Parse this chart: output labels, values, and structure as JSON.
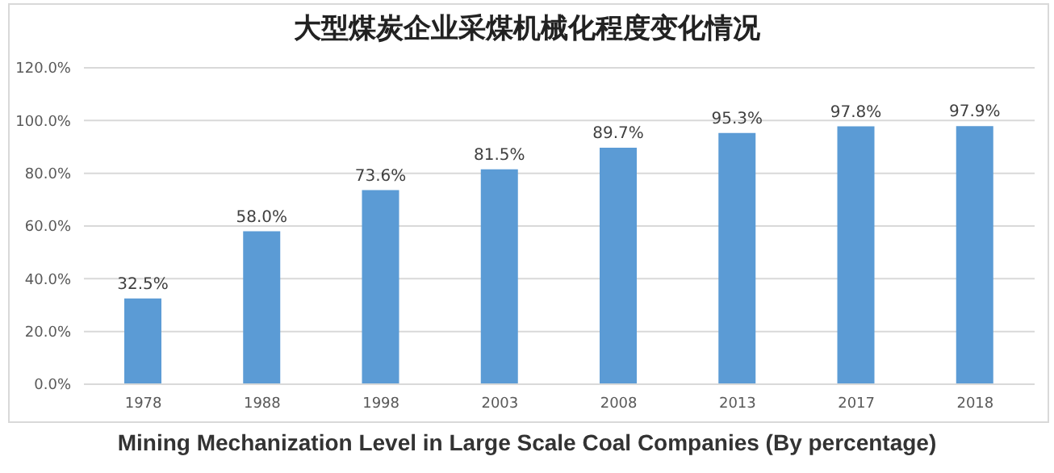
{
  "chart_data": {
    "type": "bar",
    "title": "大型煤炭企业采煤机械化程度变化情况",
    "categories": [
      "1978",
      "1988",
      "1998",
      "2003",
      "2008",
      "2013",
      "2017",
      "2018"
    ],
    "values": [
      32.5,
      58.0,
      73.6,
      81.5,
      89.7,
      95.3,
      97.8,
      97.9
    ],
    "value_labels": [
      "32.5%",
      "58.0%",
      "73.6%",
      "81.5%",
      "89.7%",
      "95.3%",
      "97.8%",
      "97.9%"
    ],
    "color": "#5b9bd5",
    "ylim": [
      0,
      120
    ],
    "yticks": [
      {
        "value": 0,
        "label": "0.0%"
      },
      {
        "value": 20,
        "label": "20.0%"
      },
      {
        "value": 40,
        "label": "40.0%"
      },
      {
        "value": 60,
        "label": "60.0%"
      },
      {
        "value": 80,
        "label": "80.0%"
      },
      {
        "value": 100,
        "label": "100.0%"
      },
      {
        "value": 120,
        "label": "120.0%"
      }
    ],
    "grid": "y",
    "annotations": [
      "Mining Mechanization Level in Large Scale Coal Companies (By percentage)"
    ]
  }
}
